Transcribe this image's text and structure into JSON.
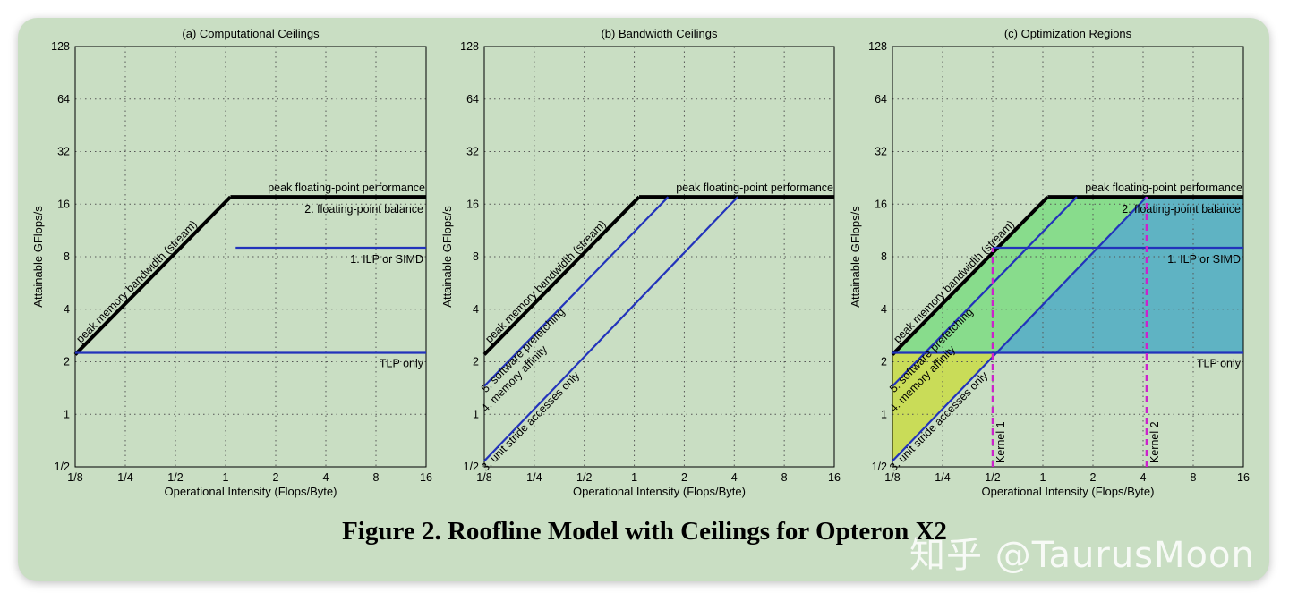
{
  "caption": "Figure 2. Roofline Model with Ceilings for Opteron X2",
  "watermark": "知乎 @TaurusMoon",
  "colors": {
    "roof": "#000000",
    "ceiling": "#2233bb",
    "kernel": "#cc22cc",
    "region_yellow": "#c9dc58",
    "region_green": "#88dc8c",
    "region_blue": "#5fb3c3",
    "panel_bg": "#c9dec3"
  },
  "chart_data": [
    {
      "type": "line",
      "title": "(a) Computational Ceilings",
      "xlabel": "Operational Intensity (Flops/Byte)",
      "ylabel": "Attainable GFlops/s",
      "x_scale": "log2",
      "y_scale": "log2",
      "xlim": [
        0.125,
        16
      ],
      "ylim": [
        0.5,
        128
      ],
      "xticks": [
        "1/8",
        "1/4",
        "1/2",
        "1",
        "2",
        "4",
        "8",
        "16"
      ],
      "yticks": [
        "1/2",
        "1",
        "2",
        "4",
        "8",
        "16",
        "32",
        "64",
        "128"
      ],
      "grid": true,
      "series": [
        {
          "name": "peak memory bandwidth (stream)",
          "kind": "roof",
          "x": [
            0.125,
            1.07
          ],
          "y": [
            2.2,
            17.6
          ]
        },
        {
          "name": "peak floating-point performance",
          "kind": "roof",
          "x": [
            1.07,
            16
          ],
          "y": [
            17.6,
            17.6
          ]
        },
        {
          "name": "1. ILP or SIMD",
          "kind": "ceiling",
          "x": [
            1.15,
            16
          ],
          "y": [
            9.0,
            9.0
          ]
        },
        {
          "name": "TLP only",
          "kind": "ceiling",
          "x": [
            0.125,
            16
          ],
          "y": [
            2.25,
            2.25
          ]
        }
      ],
      "annotations": [
        "peak memory bandwidth (stream)",
        "peak floating-point performance",
        "2. floating-point balance",
        "1. ILP or SIMD",
        "TLP only"
      ]
    },
    {
      "type": "line",
      "title": "(b) Bandwidth Ceilings",
      "xlabel": "Operational Intensity (Flops/Byte)",
      "ylabel": "Attainable GFlops/s",
      "x_scale": "log2",
      "y_scale": "log2",
      "xlim": [
        0.125,
        16
      ],
      "ylim": [
        0.5,
        128
      ],
      "xticks": [
        "1/8",
        "1/4",
        "1/2",
        "1",
        "2",
        "4",
        "8",
        "16"
      ],
      "yticks": [
        "1/2",
        "1",
        "2",
        "4",
        "8",
        "16",
        "32",
        "64",
        "128"
      ],
      "grid": true,
      "series": [
        {
          "name": "peak memory bandwidth (stream)",
          "kind": "roof",
          "x": [
            0.125,
            1.07
          ],
          "y": [
            2.2,
            17.6
          ]
        },
        {
          "name": "peak floating-point performance",
          "kind": "roof",
          "x": [
            1.07,
            16
          ],
          "y": [
            17.6,
            17.6
          ]
        },
        {
          "name": "5. software prefetching",
          "kind": "ceiling",
          "x": [
            0.125,
            1.6
          ],
          "y": [
            1.45,
            17.6
          ]
        },
        {
          "name": "4. memory affinity",
          "kind": "ceiling",
          "x": [
            0.125,
            4.2
          ],
          "y": [
            0.54,
            17.6
          ]
        }
      ],
      "annotations": [
        "peak memory bandwidth (stream)",
        "peak floating-point performance",
        "5. software prefetching",
        "4. memory affinity",
        "3. unit stride accesses only"
      ]
    },
    {
      "type": "line",
      "title": "(c) Optimization Regions",
      "xlabel": "Operational Intensity (Flops/Byte)",
      "ylabel": "Attainable GFlops/s",
      "x_scale": "log2",
      "y_scale": "log2",
      "xlim": [
        0.125,
        16
      ],
      "ylim": [
        0.5,
        128
      ],
      "xticks": [
        "1/8",
        "1/4",
        "1/2",
        "1",
        "2",
        "4",
        "8",
        "16"
      ],
      "yticks": [
        "1/2",
        "1",
        "2",
        "4",
        "8",
        "16",
        "32",
        "64",
        "128"
      ],
      "grid": true,
      "series": [
        {
          "name": "peak memory bandwidth (stream)",
          "kind": "roof",
          "x": [
            0.125,
            1.07
          ],
          "y": [
            2.2,
            17.6
          ]
        },
        {
          "name": "peak floating-point performance",
          "kind": "roof",
          "x": [
            1.07,
            16
          ],
          "y": [
            17.6,
            17.6
          ]
        },
        {
          "name": "1. ILP or SIMD",
          "kind": "ceiling",
          "x": [
            0.5,
            16
          ],
          "y": [
            9.0,
            9.0
          ]
        },
        {
          "name": "TLP only",
          "kind": "ceiling",
          "x": [
            0.125,
            16
          ],
          "y": [
            2.25,
            2.25
          ]
        },
        {
          "name": "5. software prefetching",
          "kind": "ceiling",
          "x": [
            0.125,
            1.6
          ],
          "y": [
            1.45,
            17.6
          ]
        },
        {
          "name": "4. memory affinity",
          "kind": "ceiling",
          "x": [
            0.125,
            4.2
          ],
          "y": [
            0.54,
            17.6
          ]
        },
        {
          "name": "Kernel 1",
          "kind": "kernel",
          "x": [
            0.5,
            0.5
          ],
          "y": [
            0.5,
            9.0
          ]
        },
        {
          "name": "Kernel 2",
          "kind": "kernel",
          "x": [
            4.2,
            4.2
          ],
          "y": [
            0.5,
            17.6
          ]
        }
      ],
      "annotations": [
        "peak memory bandwidth (stream)",
        "peak floating-point performance",
        "2. floating-point balance",
        "1. ILP or SIMD",
        "TLP only",
        "5. software prefetching",
        "4. memory affinity",
        "3. unit stride accesses only",
        "Kernel 1",
        "Kernel 2"
      ]
    }
  ]
}
